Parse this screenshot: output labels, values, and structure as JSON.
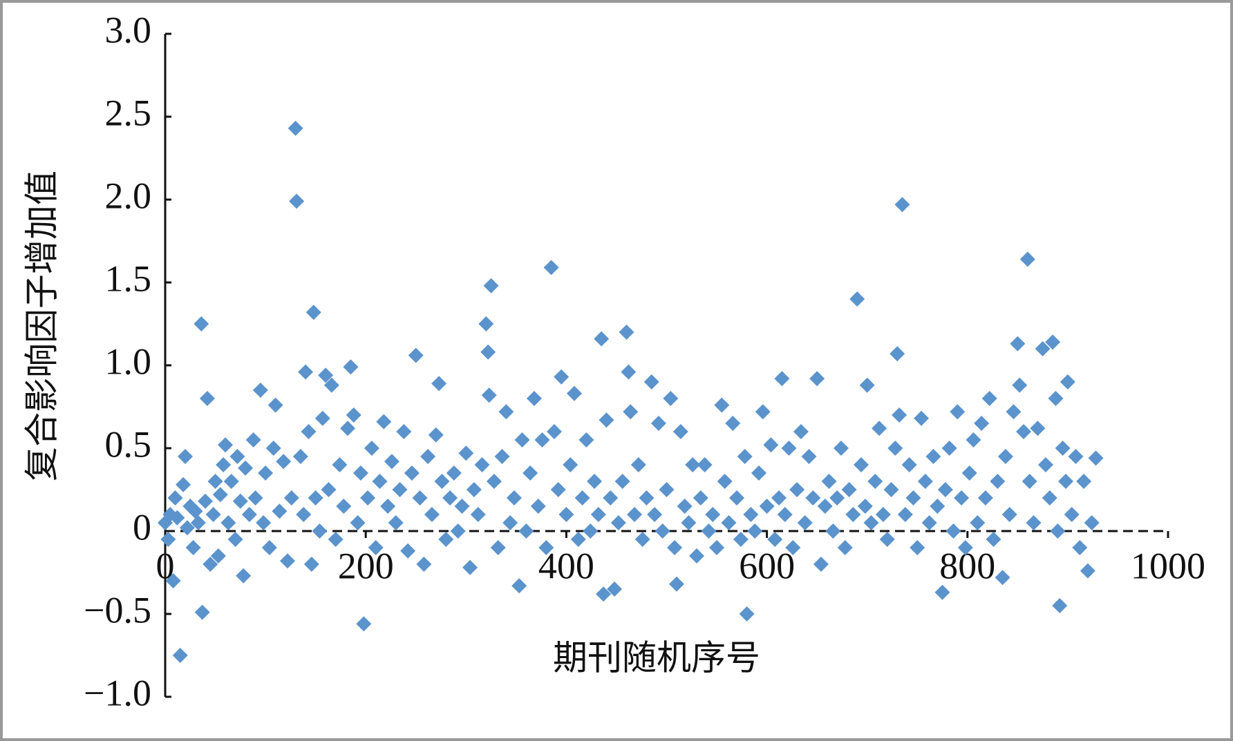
{
  "chart_data": {
    "type": "scatter",
    "y_label": "复合影响因子增加值",
    "x_label": "期刊随机序号",
    "color": "#5b93cc",
    "xlim": [
      0,
      1000
    ],
    "xticks": [
      0,
      200,
      400,
      600,
      800,
      1000
    ],
    "ylim": [
      -1.0,
      3.0
    ],
    "yticks": [
      {
        "value": -1.0,
        "label": "−1.0"
      },
      {
        "value": -0.5,
        "label": "−0.5"
      },
      0,
      0.5,
      {
        "value": 1.0,
        "label": "1.0"
      },
      {
        "value": 1.5,
        "label": "1.5"
      },
      {
        "value": 2.0,
        "label": "2.0"
      },
      {
        "value": 2.5,
        "label": "2.5"
      },
      {
        "value": 3.0,
        "label": "3.0"
      }
    ],
    "x": [
      0,
      3,
      5,
      8,
      10,
      12,
      15,
      18,
      20,
      22,
      25,
      28,
      30,
      33,
      36,
      37,
      40,
      42,
      45,
      48,
      50,
      53,
      55,
      58,
      60,
      63,
      66,
      70,
      72,
      75,
      78,
      80,
      84,
      88,
      90,
      95,
      98,
      100,
      104,
      108,
      110,
      114,
      118,
      122,
      126,
      130,
      131,
      135,
      138,
      140,
      143,
      146,
      148,
      150,
      154,
      157,
      160,
      163,
      166,
      170,
      174,
      178,
      182,
      185,
      188,
      192,
      195,
      198,
      202,
      206,
      210,
      214,
      218,
      222,
      226,
      230,
      234,
      238,
      242,
      246,
      250,
      254,
      258,
      262,
      266,
      270,
      273,
      276,
      280,
      284,
      288,
      292,
      296,
      300,
      304,
      308,
      312,
      316,
      320,
      322,
      323,
      325,
      328,
      332,
      336,
      340,
      344,
      348,
      353,
      356,
      360,
      364,
      368,
      372,
      376,
      380,
      385,
      388,
      392,
      395,
      400,
      404,
      408,
      412,
      416,
      420,
      424,
      428,
      432,
      435,
      437,
      440,
      444,
      448,
      452,
      456,
      460,
      462,
      464,
      468,
      472,
      476,
      480,
      485,
      488,
      492,
      496,
      500,
      504,
      508,
      510,
      514,
      518,
      522,
      526,
      530,
      534,
      538,
      542,
      546,
      550,
      555,
      558,
      562,
      566,
      570,
      574,
      578,
      580,
      584,
      588,
      592,
      596,
      600,
      604,
      608,
      612,
      615,
      618,
      622,
      626,
      630,
      634,
      638,
      642,
      646,
      650,
      654,
      658,
      662,
      666,
      670,
      674,
      678,
      682,
      686,
      690,
      694,
      698,
      700,
      704,
      708,
      712,
      716,
      720,
      724,
      728,
      730,
      732,
      735,
      738,
      742,
      746,
      750,
      754,
      758,
      762,
      766,
      770,
      775,
      778,
      782,
      786,
      790,
      794,
      798,
      802,
      806,
      810,
      814,
      818,
      822,
      826,
      830,
      835,
      838,
      842,
      846,
      850,
      852,
      856,
      860,
      862,
      866,
      870,
      875,
      878,
      882,
      885,
      888,
      890,
      892,
      895,
      898,
      900,
      904,
      908,
      912,
      916,
      920,
      924,
      928
    ],
    "values": [
      0.05,
      -0.05,
      0.1,
      -0.3,
      0.2,
      0.08,
      -0.75,
      0.28,
      0.45,
      0.02,
      0.15,
      -0.1,
      0.12,
      0.05,
      1.25,
      -0.49,
      0.18,
      0.8,
      -0.2,
      0.1,
      0.3,
      -0.15,
      0.22,
      0.4,
      0.52,
      0.05,
      0.3,
      -0.05,
      0.45,
      0.18,
      -0.27,
      0.38,
      0.1,
      0.55,
      0.2,
      0.85,
      0.05,
      0.35,
      -0.1,
      0.5,
      0.76,
      0.12,
      0.42,
      -0.18,
      0.2,
      2.43,
      1.99,
      0.45,
      0.1,
      0.96,
      0.6,
      -0.2,
      1.32,
      0.2,
      0.0,
      0.68,
      0.94,
      0.25,
      0.88,
      -0.05,
      0.4,
      0.15,
      0.62,
      0.99,
      0.7,
      0.05,
      0.35,
      -0.56,
      0.2,
      0.5,
      -0.1,
      0.3,
      0.66,
      0.15,
      0.42,
      0.05,
      0.25,
      0.6,
      -0.12,
      0.35,
      1.06,
      0.2,
      -0.2,
      0.45,
      0.1,
      0.58,
      0.89,
      0.3,
      -0.05,
      0.2,
      0.35,
      0.0,
      0.15,
      0.47,
      -0.22,
      0.25,
      0.1,
      0.4,
      1.25,
      1.08,
      0.82,
      1.48,
      0.3,
      -0.1,
      0.45,
      0.72,
      0.05,
      0.2,
      -0.33,
      0.55,
      0.0,
      0.35,
      0.8,
      0.15,
      0.55,
      -0.1,
      1.59,
      0.6,
      0.25,
      0.93,
      0.1,
      0.4,
      0.83,
      -0.05,
      0.2,
      0.55,
      0.0,
      0.3,
      0.1,
      1.16,
      -0.38,
      0.67,
      0.2,
      -0.35,
      0.05,
      0.3,
      1.2,
      0.96,
      0.72,
      0.1,
      0.4,
      -0.05,
      0.2,
      0.9,
      0.1,
      0.65,
      0.0,
      0.25,
      0.8,
      -0.1,
      -0.32,
      0.6,
      0.15,
      0.05,
      0.4,
      -0.15,
      0.2,
      0.4,
      0.0,
      0.1,
      -0.1,
      0.76,
      0.3,
      0.05,
      0.65,
      0.2,
      -0.05,
      0.45,
      -0.5,
      0.1,
      0.0,
      0.35,
      0.72,
      0.15,
      0.52,
      -0.05,
      0.2,
      0.92,
      0.1,
      0.5,
      -0.1,
      0.25,
      0.6,
      0.05,
      0.45,
      0.2,
      0.92,
      -0.2,
      0.15,
      0.3,
      0.0,
      0.2,
      0.5,
      -0.1,
      0.25,
      0.1,
      1.4,
      0.4,
      0.15,
      0.88,
      0.05,
      0.3,
      0.62,
      0.1,
      -0.05,
      0.25,
      0.5,
      1.07,
      0.7,
      1.97,
      0.1,
      0.4,
      0.2,
      -0.1,
      0.68,
      0.3,
      0.05,
      0.45,
      0.15,
      -0.37,
      0.25,
      0.5,
      0.0,
      0.72,
      0.2,
      -0.1,
      0.35,
      0.55,
      0.05,
      0.65,
      0.2,
      0.8,
      -0.05,
      0.3,
      -0.28,
      0.45,
      0.1,
      0.72,
      1.13,
      0.88,
      0.6,
      1.64,
      0.3,
      0.05,
      0.62,
      1.1,
      0.4,
      0.2,
      1.14,
      0.8,
      0.0,
      -0.45,
      0.5,
      0.3,
      0.9,
      0.1,
      0.45,
      -0.1,
      0.3,
      -0.24,
      0.05,
      0.44
    ]
  }
}
